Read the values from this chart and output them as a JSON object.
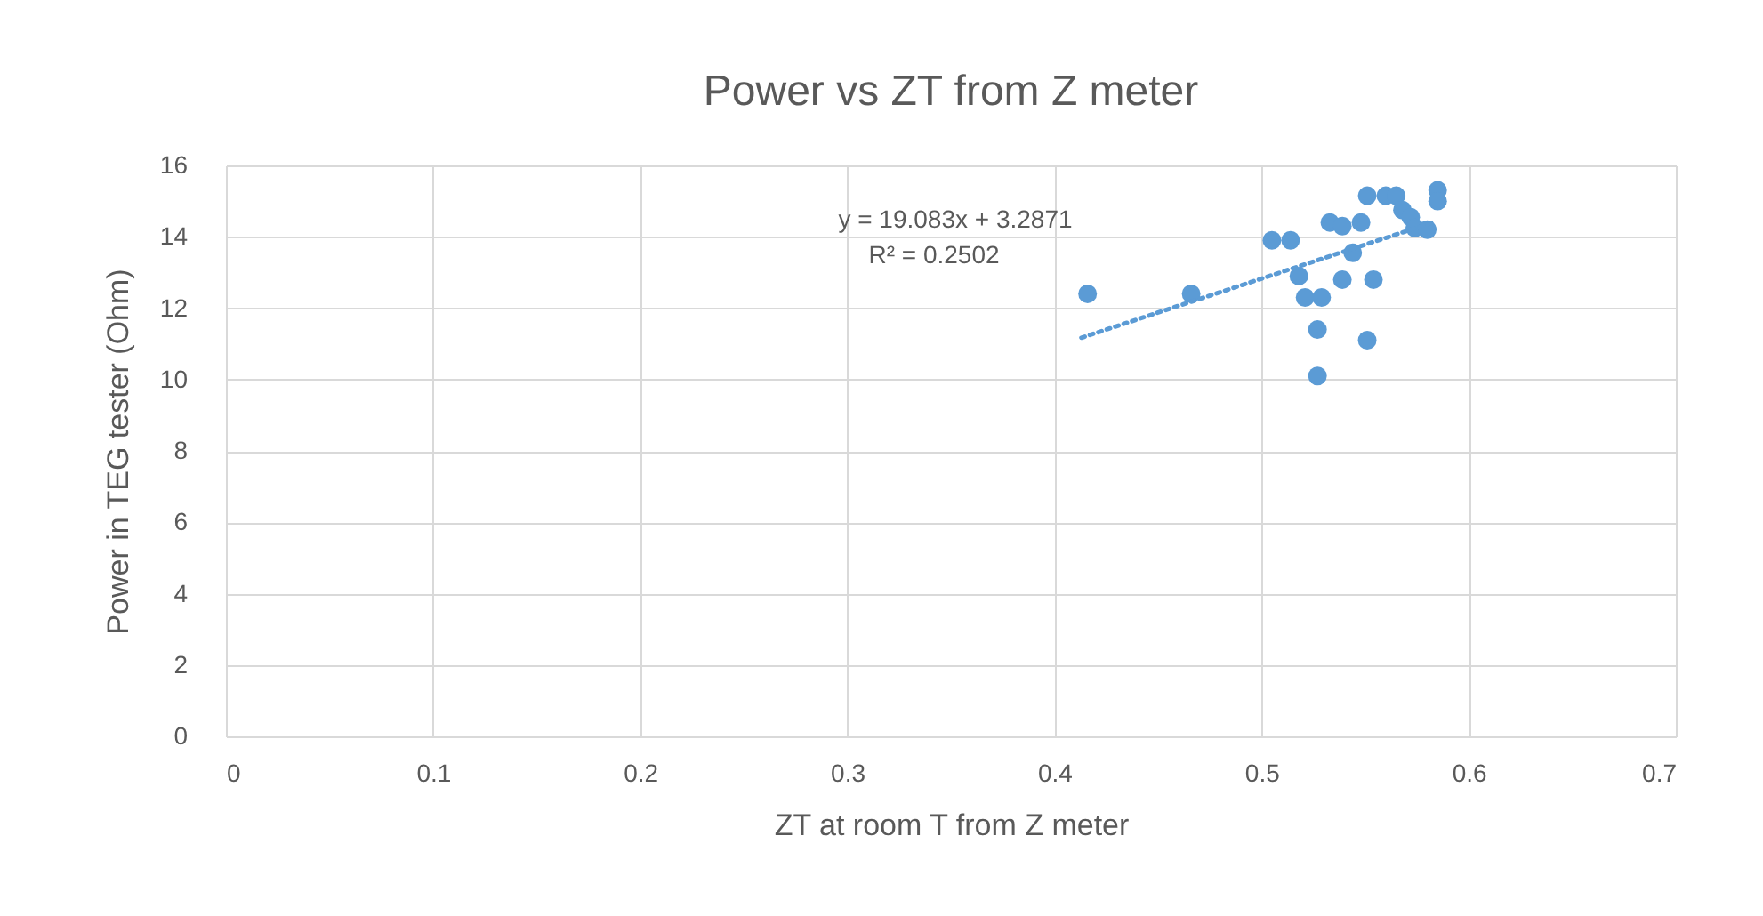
{
  "chart_data": {
    "type": "scatter",
    "title": "Power vs ZT from Z meter",
    "xlabel": "ZT at room T from Z meter",
    "ylabel": "Power in TEG tester (Ohm)",
    "x": [
      0.416,
      0.466,
      0.505,
      0.514,
      0.533,
      0.551,
      0.56,
      0.565,
      0.585,
      0.585,
      0.539,
      0.548,
      0.544,
      0.568,
      0.572,
      0.574,
      0.58,
      0.518,
      0.521,
      0.529,
      0.539,
      0.554,
      0.527,
      0.551,
      0.527
    ],
    "series": [
      {
        "type": "scatter",
        "color": "#5b9bd5",
        "marker": "circle",
        "values": [
          12.4,
          12.4,
          13.9,
          13.9,
          14.4,
          15.15,
          15.15,
          15.15,
          15.3,
          15.0,
          14.3,
          14.4,
          13.55,
          14.75,
          14.55,
          14.25,
          14.2,
          12.9,
          12.3,
          12.3,
          12.8,
          12.8,
          11.4,
          11.1,
          10.1
        ]
      },
      {
        "type": "line",
        "color": "#5b9bd5",
        "line_style": "dotted",
        "marker": "none",
        "x": [
          0.413,
          0.582
        ],
        "values": [
          11.17,
          14.39
        ]
      }
    ],
    "annotations": [
      "y = 19.083x + 3.2871",
      "R² = 0.2502"
    ],
    "xlim": [
      0,
      0.7
    ],
    "xticks": [
      0,
      0.1,
      0.2,
      0.3,
      0.4,
      0.5,
      0.6,
      0.7
    ],
    "ylim": [
      0,
      16
    ],
    "yticks": [
      0,
      2,
      4,
      6,
      8,
      10,
      12,
      14,
      16
    ],
    "grid": true
  }
}
